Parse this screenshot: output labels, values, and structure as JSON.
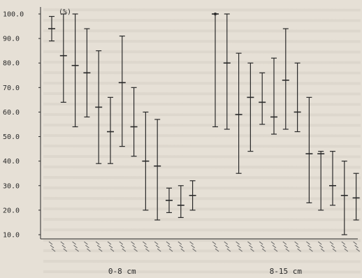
{
  "chart_data": {
    "type": "error-bar",
    "title": "",
    "ylabel": "(%)",
    "ylim": [
      10.0,
      100.0
    ],
    "yticks": [
      "100.0",
      "90.0",
      "80.0",
      "70.0",
      "60.0",
      "50.0",
      "40.0",
      "30.0",
      "20.0",
      "10.0"
    ],
    "groups": [
      {
        "label": "0-8 cm",
        "items": [
          {
            "mean": 94,
            "low": 89,
            "high": 99
          },
          {
            "mean": 83,
            "low": 64,
            "high": 100
          },
          {
            "mean": 79,
            "low": 54,
            "high": 100
          },
          {
            "mean": 76,
            "low": 58,
            "high": 94
          },
          {
            "mean": 62,
            "low": 39,
            "high": 85
          },
          {
            "mean": 52,
            "low": 39,
            "high": 66
          },
          {
            "mean": 72,
            "low": 46,
            "high": 91
          },
          {
            "mean": 54,
            "low": 42,
            "high": 70
          },
          {
            "mean": 40,
            "low": 20,
            "high": 60
          },
          {
            "mean": 38,
            "low": 16,
            "high": 57
          },
          {
            "mean": 24,
            "low": 19,
            "high": 29
          },
          {
            "mean": 22,
            "low": 17,
            "high": 30
          },
          {
            "mean": 26,
            "low": 20,
            "high": 32
          }
        ]
      },
      {
        "label": "8-15 cm",
        "items": [
          {
            "mean": 100,
            "low": 54,
            "high": 100
          },
          {
            "mean": 80,
            "low": 53,
            "high": 100
          },
          {
            "mean": 59,
            "low": 35,
            "high": 84
          },
          {
            "mean": 66,
            "low": 44,
            "high": 80
          },
          {
            "mean": 64,
            "low": 55,
            "high": 76
          },
          {
            "mean": 58,
            "low": 51,
            "high": 82
          },
          {
            "mean": 73,
            "low": 53,
            "high": 94
          },
          {
            "mean": 60,
            "low": 52,
            "high": 80
          },
          {
            "mean": 43,
            "low": 23,
            "high": 66
          },
          {
            "mean": 43,
            "low": 20,
            "high": 44
          },
          {
            "mean": 30,
            "low": 22,
            "high": 44
          },
          {
            "mean": 26,
            "low": 10,
            "high": 40
          },
          {
            "mean": 25,
            "low": 16,
            "high": 35
          }
        ]
      }
    ],
    "colors": {
      "ink": "#2a2a2a",
      "paper": "#e6e0d6"
    }
  }
}
